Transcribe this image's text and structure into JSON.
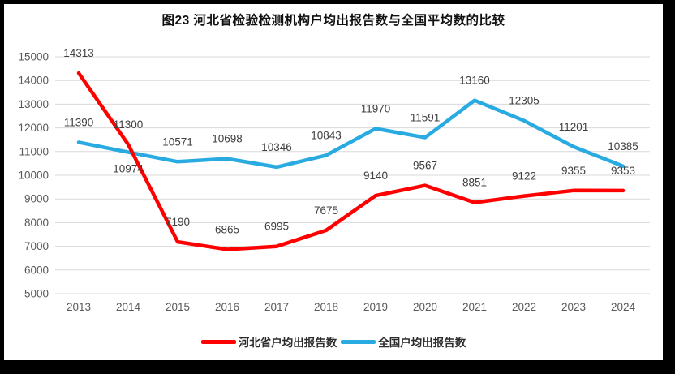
{
  "chart_data": {
    "type": "line",
    "title": "图23  河北省检验检测机构户均出报告数与全国平均数的比较",
    "categories": [
      "2013",
      "2014",
      "2015",
      "2016",
      "2017",
      "2018",
      "2019",
      "2020",
      "2021",
      "2022",
      "2023",
      "2024"
    ],
    "series": [
      {
        "name": "河北省户均出报告数",
        "color": "#FF0000",
        "values": [
          14313,
          11300,
          7190,
          6865,
          6995,
          7675,
          9140,
          9567,
          8851,
          9122,
          9355,
          9353
        ],
        "labels_below": []
      },
      {
        "name": "全国户均出报告数",
        "color": "#29ABE2",
        "values": [
          11390,
          10974,
          10571,
          10698,
          10346,
          10843,
          11970,
          11591,
          13160,
          12305,
          11201,
          10385
        ],
        "labels_below": [
          1
        ]
      }
    ],
    "ylim": [
      5000,
      15000
    ],
    "yticks": [
      5000,
      6000,
      7000,
      8000,
      9000,
      10000,
      11000,
      12000,
      13000,
      14000,
      15000
    ],
    "grid": "horizontal",
    "grid_color": "#D9D9D9",
    "axis_label_color": "#595959",
    "data_label_color": "#404040",
    "legend_position": "bottom",
    "show_data_labels": true
  }
}
